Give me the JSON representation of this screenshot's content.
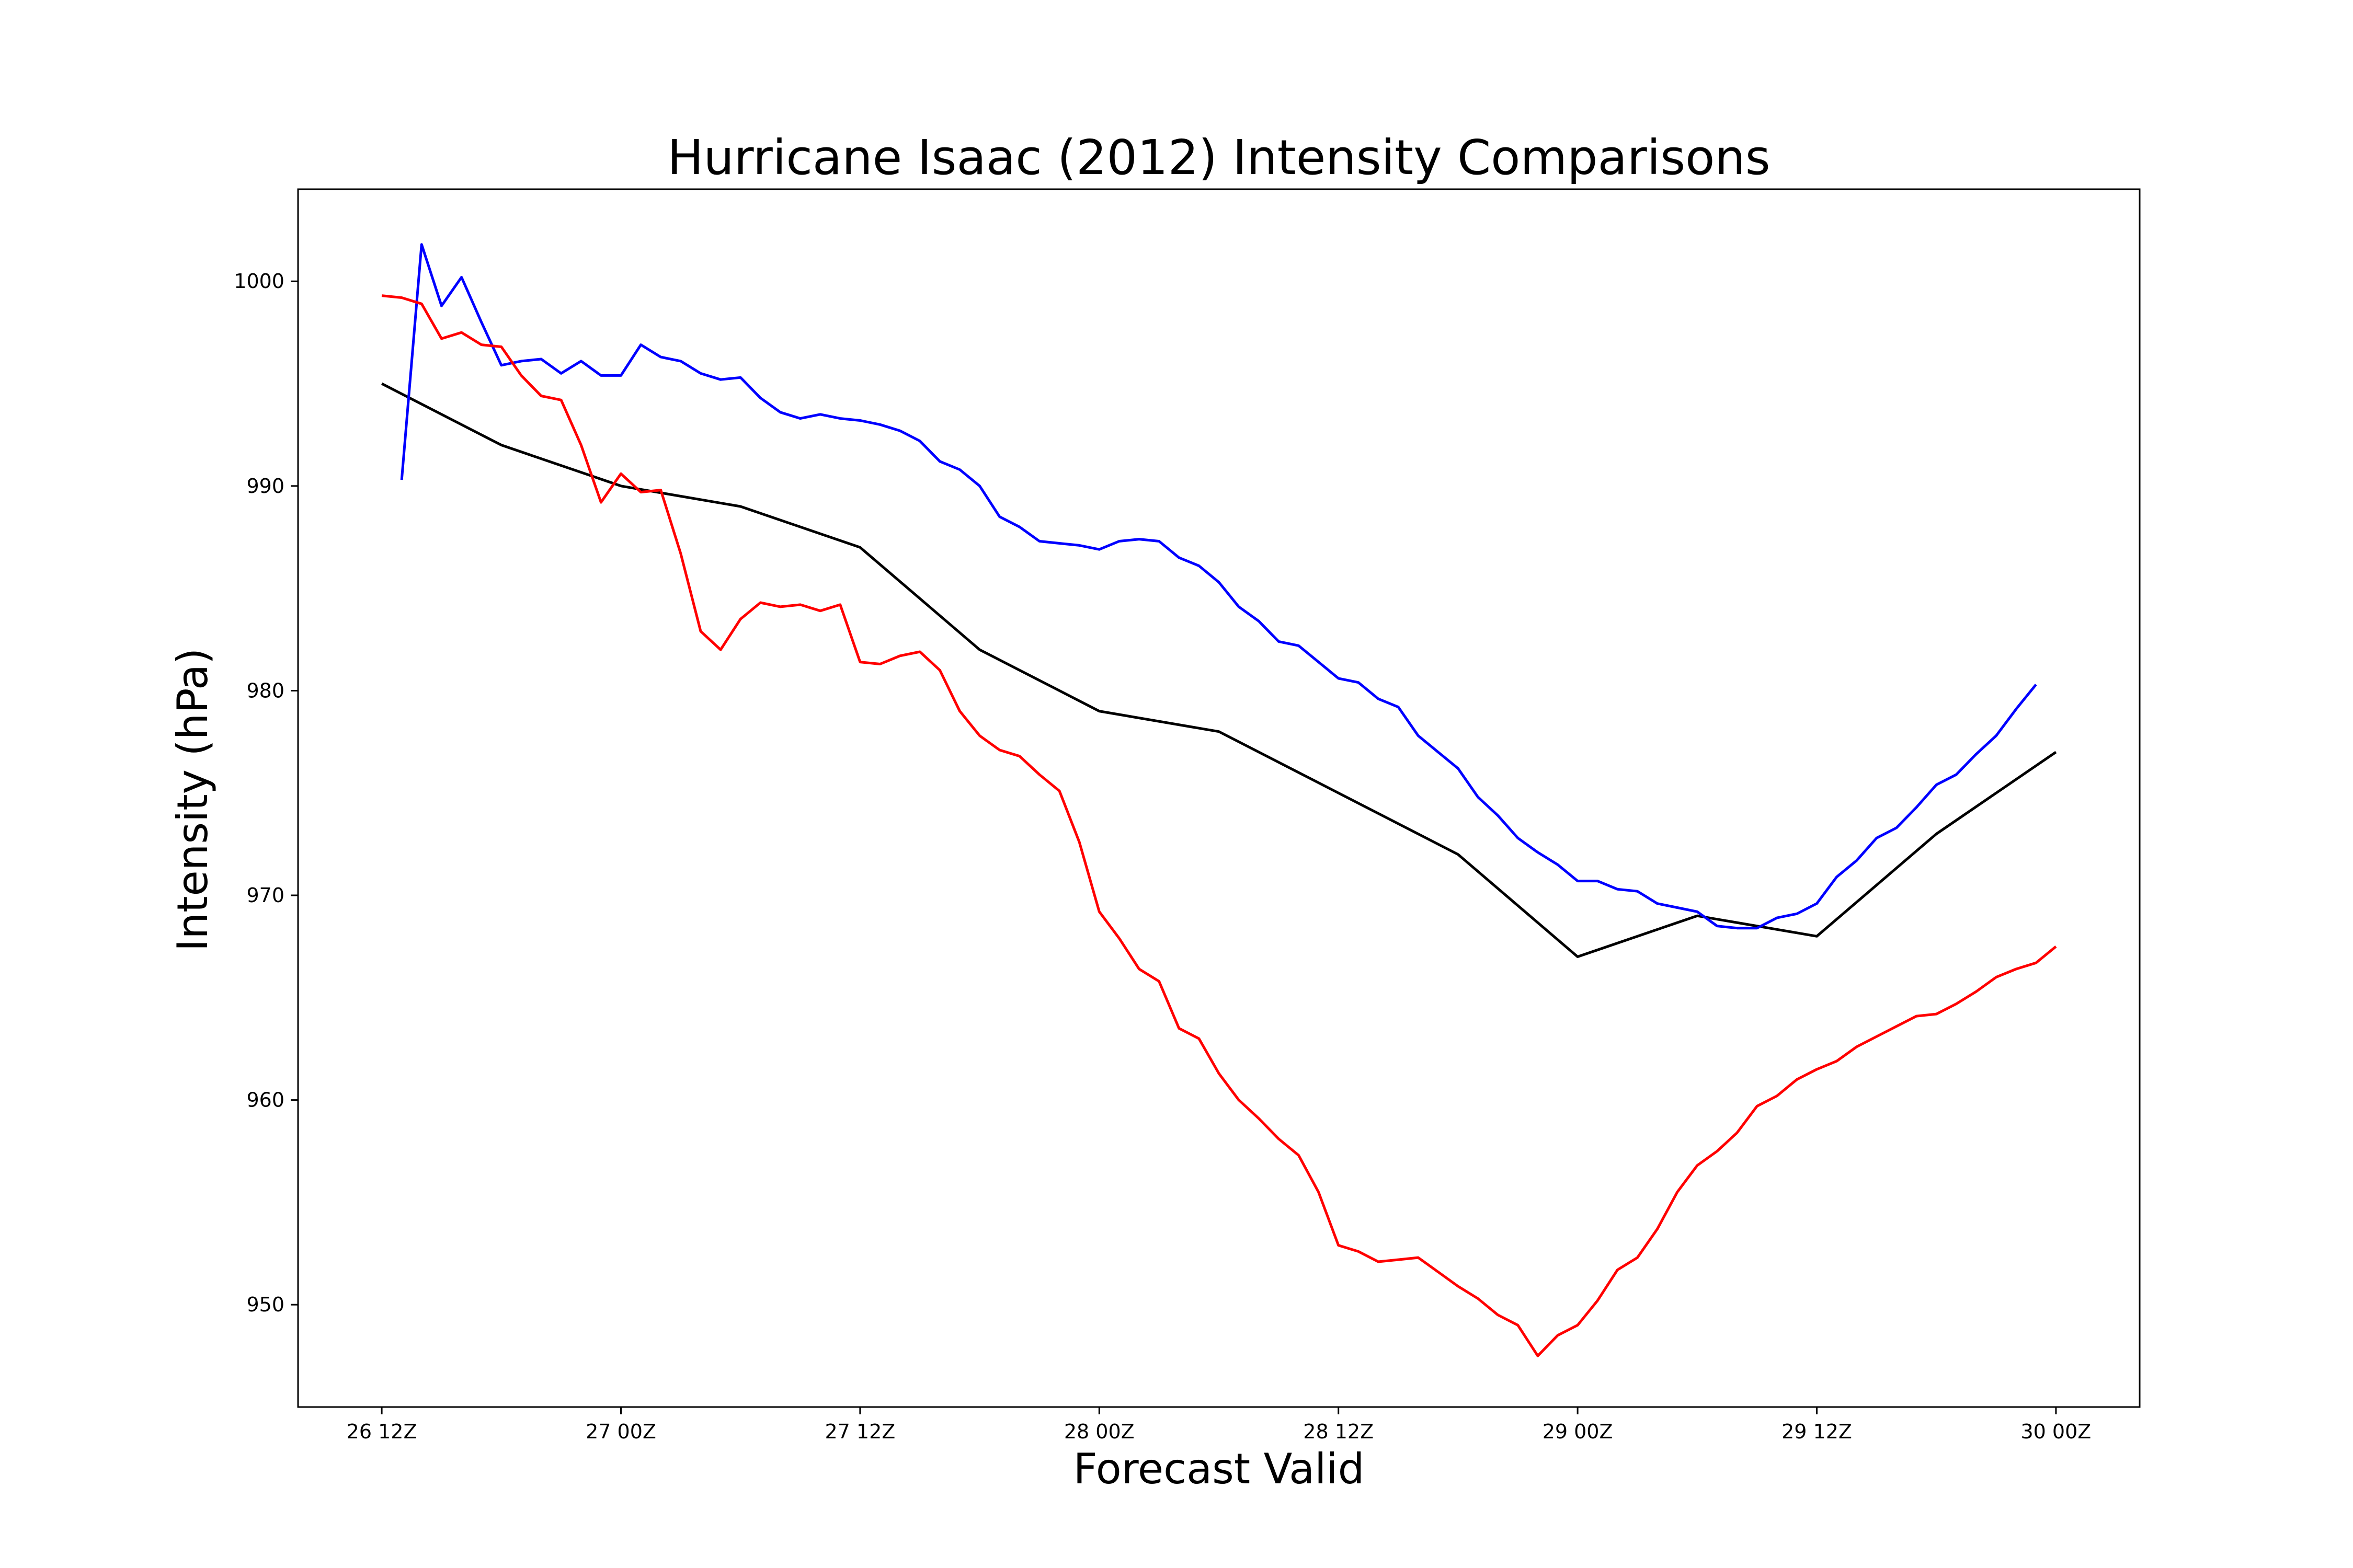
{
  "chart_data": {
    "type": "line",
    "title": "Hurricane Isaac (2012) Intensity Comparisons",
    "xlabel": "Forecast Valid",
    "ylabel": "Intensity (hPa)",
    "x_unit": "hours after 26 12Z",
    "xlim": [
      -4.2,
      88.2
    ],
    "ylim": [
      945,
      1004.5
    ],
    "grid": false,
    "legend": "none",
    "x_ticks": [
      {
        "value": 0,
        "label": "26 12Z"
      },
      {
        "value": 12,
        "label": "27 00Z"
      },
      {
        "value": 24,
        "label": "27 12Z"
      },
      {
        "value": 36,
        "label": "28 00Z"
      },
      {
        "value": 48,
        "label": "28 12Z"
      },
      {
        "value": 60,
        "label": "29 00Z"
      },
      {
        "value": 72,
        "label": "29 12Z"
      },
      {
        "value": 84,
        "label": "30 00Z"
      }
    ],
    "y_ticks": [
      {
        "value": 950,
        "label": "950"
      },
      {
        "value": 960,
        "label": "960"
      },
      {
        "value": 970,
        "label": "970"
      },
      {
        "value": 980,
        "label": "980"
      },
      {
        "value": 990,
        "label": "990"
      },
      {
        "value": 1000,
        "label": "1000"
      }
    ],
    "series": [
      {
        "color": "#000000",
        "x": [
          0,
          6,
          12,
          18,
          24,
          30,
          36,
          42,
          48,
          54,
          60,
          66,
          72,
          78,
          84
        ],
        "y": [
          995,
          992,
          990,
          989,
          987,
          982,
          979,
          978,
          975,
          972,
          967,
          969,
          968,
          973,
          977
        ]
      },
      {
        "color": "#0000ff",
        "x": [
          1,
          2,
          3,
          4,
          5,
          6,
          7,
          8,
          9,
          10,
          11,
          12,
          13,
          14,
          15,
          16,
          17,
          18,
          19,
          20,
          21,
          22,
          23,
          24,
          25,
          26,
          27,
          28,
          29,
          30,
          31,
          32,
          33,
          34,
          35,
          36,
          37,
          38,
          39,
          40,
          41,
          42,
          43,
          44,
          45,
          46,
          47,
          48,
          49,
          50,
          51,
          52,
          53,
          54,
          55,
          56,
          57,
          58,
          59,
          60,
          61,
          62,
          63,
          64,
          65,
          66,
          67,
          68,
          69,
          70,
          71,
          72,
          73,
          74,
          75,
          76,
          77,
          78,
          79,
          80,
          81,
          82,
          83
        ],
        "y": [
          990.3,
          1001.8,
          998.8,
          1000.2,
          998.0,
          995.9,
          996.1,
          996.2,
          995.5,
          996.1,
          995.4,
          995.4,
          996.9,
          996.3,
          996.1,
          995.5,
          995.2,
          995.3,
          994.3,
          993.6,
          993.3,
          993.5,
          993.3,
          993.2,
          993.0,
          992.7,
          992.2,
          991.2,
          990.8,
          990.0,
          988.5,
          988.0,
          987.3,
          987.2,
          987.1,
          986.9,
          987.3,
          987.4,
          987.3,
          986.5,
          986.1,
          985.3,
          984.1,
          983.4,
          982.4,
          982.2,
          981.4,
          980.6,
          980.4,
          979.6,
          979.2,
          977.8,
          977.0,
          976.2,
          974.8,
          973.9,
          972.8,
          972.1,
          971.5,
          970.7,
          970.7,
          970.3,
          970.2,
          969.6,
          969.4,
          969.2,
          968.5,
          968.4,
          968.4,
          968.9,
          969.1,
          969.6,
          970.9,
          971.7,
          972.8,
          973.3,
          974.3,
          975.4,
          975.9,
          976.9,
          977.8,
          979.1,
          980.3
        ]
      },
      {
        "color": "#ff0000",
        "x": [
          0,
          1,
          2,
          3,
          4,
          5,
          6,
          7,
          8,
          9,
          10,
          11,
          12,
          13,
          14,
          15,
          16,
          17,
          18,
          19,
          20,
          21,
          22,
          23,
          24,
          25,
          26,
          27,
          28,
          29,
          30,
          31,
          32,
          33,
          34,
          35,
          36,
          37,
          38,
          39,
          40,
          41,
          42,
          43,
          44,
          45,
          46,
          47,
          48,
          49,
          50,
          51,
          52,
          53,
          54,
          55,
          56,
          57,
          58,
          59,
          60,
          61,
          62,
          63,
          64,
          65,
          66,
          67,
          68,
          69,
          70,
          71,
          72,
          73,
          74,
          75,
          76,
          77,
          78,
          79,
          80,
          81,
          82,
          83,
          84
        ],
        "y": [
          999.3,
          999.2,
          998.9,
          997.2,
          997.5,
          996.9,
          996.8,
          995.4,
          994.4,
          994.2,
          992.0,
          989.2,
          990.6,
          989.7,
          989.8,
          986.7,
          982.9,
          982.0,
          983.5,
          984.3,
          984.1,
          984.2,
          983.9,
          984.2,
          981.4,
          981.3,
          981.7,
          981.9,
          981.0,
          979.0,
          977.8,
          977.1,
          976.8,
          975.9,
          975.1,
          972.6,
          969.2,
          967.9,
          966.4,
          965.8,
          963.5,
          963.0,
          961.3,
          960.0,
          959.1,
          958.1,
          957.3,
          955.5,
          952.9,
          952.6,
          952.1,
          952.2,
          952.3,
          951.6,
          950.9,
          950.3,
          949.5,
          949.0,
          947.5,
          948.5,
          949.0,
          950.2,
          951.7,
          952.3,
          953.7,
          955.5,
          956.8,
          957.5,
          958.4,
          959.7,
          960.2,
          961.0,
          961.5,
          961.9,
          962.6,
          963.1,
          963.6,
          964.1,
          964.2,
          964.7,
          965.3,
          966.0,
          966.4,
          966.7,
          967.5
        ]
      }
    ]
  }
}
